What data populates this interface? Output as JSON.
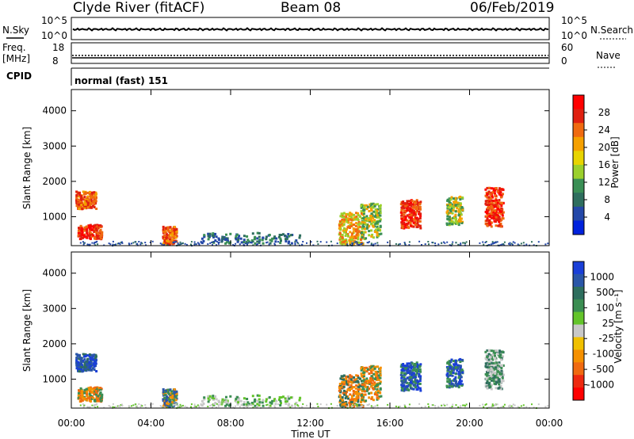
{
  "header": {
    "station": "Clyde River (fitACF)",
    "beam": "Beam 08",
    "date": "06/Feb/2019"
  },
  "strips": {
    "nsky_label": "N.Sky",
    "nsky_ticks": [
      "10^5",
      "10^0"
    ],
    "nsearch_label": "N.Search",
    "nsearch_ticks": [
      "10^5",
      "10^0"
    ],
    "freq_label_1": "Freq.",
    "freq_label_2": "[MHz]",
    "freq_ticks": [
      "18",
      "8"
    ],
    "nave_label": "Nave",
    "nave_ticks": [
      "60",
      "0"
    ],
    "cpid_label": "CPID",
    "cpid_value": "normal (fast) 151"
  },
  "colors": {
    "power_scale": [
      "#0022dd",
      "#2448a8",
      "#2e6e5e",
      "#3a8f55",
      "#9bd02c",
      "#e8d400",
      "#f5a000",
      "#f06a10",
      "#e02010",
      "#ff0000"
    ],
    "velocity_scale": [
      "#1a3fd8",
      "#2a56a8",
      "#2e6e5e",
      "#3b8e52",
      "#63c42a",
      "#c8c8c8",
      "#f0c000",
      "#f59000",
      "#f06a10",
      "#ee2a10",
      "#ff0000"
    ]
  },
  "chart_data": [
    {
      "type": "heatmap",
      "panel": "power",
      "ylabel": "Slant Range [km]",
      "yticks": [
        "4000",
        "3000",
        "2000",
        "1000"
      ],
      "ylim": [
        180,
        4600
      ],
      "xlim_hours": [
        0,
        24
      ],
      "colorbar_label": "Power [dB]",
      "colorbar_ticks": [
        "28",
        "24",
        "20",
        "16",
        "12",
        "8",
        "4"
      ],
      "colorbar_range": [
        0,
        30
      ]
    },
    {
      "type": "heatmap",
      "panel": "velocity",
      "ylabel": "Slant Range [km]",
      "yticks": [
        "4000",
        "3000",
        "2000",
        "1000"
      ],
      "ylim": [
        180,
        4600
      ],
      "xlim_hours": [
        0,
        24
      ],
      "colorbar_label": "Velocity [m s⁻¹]",
      "colorbar_ticks": [
        "1000",
        "500",
        "100",
        "25",
        "-25",
        "-100",
        "-500",
        "-1000"
      ],
      "xticks": [
        "00:00",
        "04:00",
        "08:00",
        "12:00",
        "16:00",
        "20:00",
        "00:00"
      ],
      "xlabel": "Time UT"
    }
  ]
}
